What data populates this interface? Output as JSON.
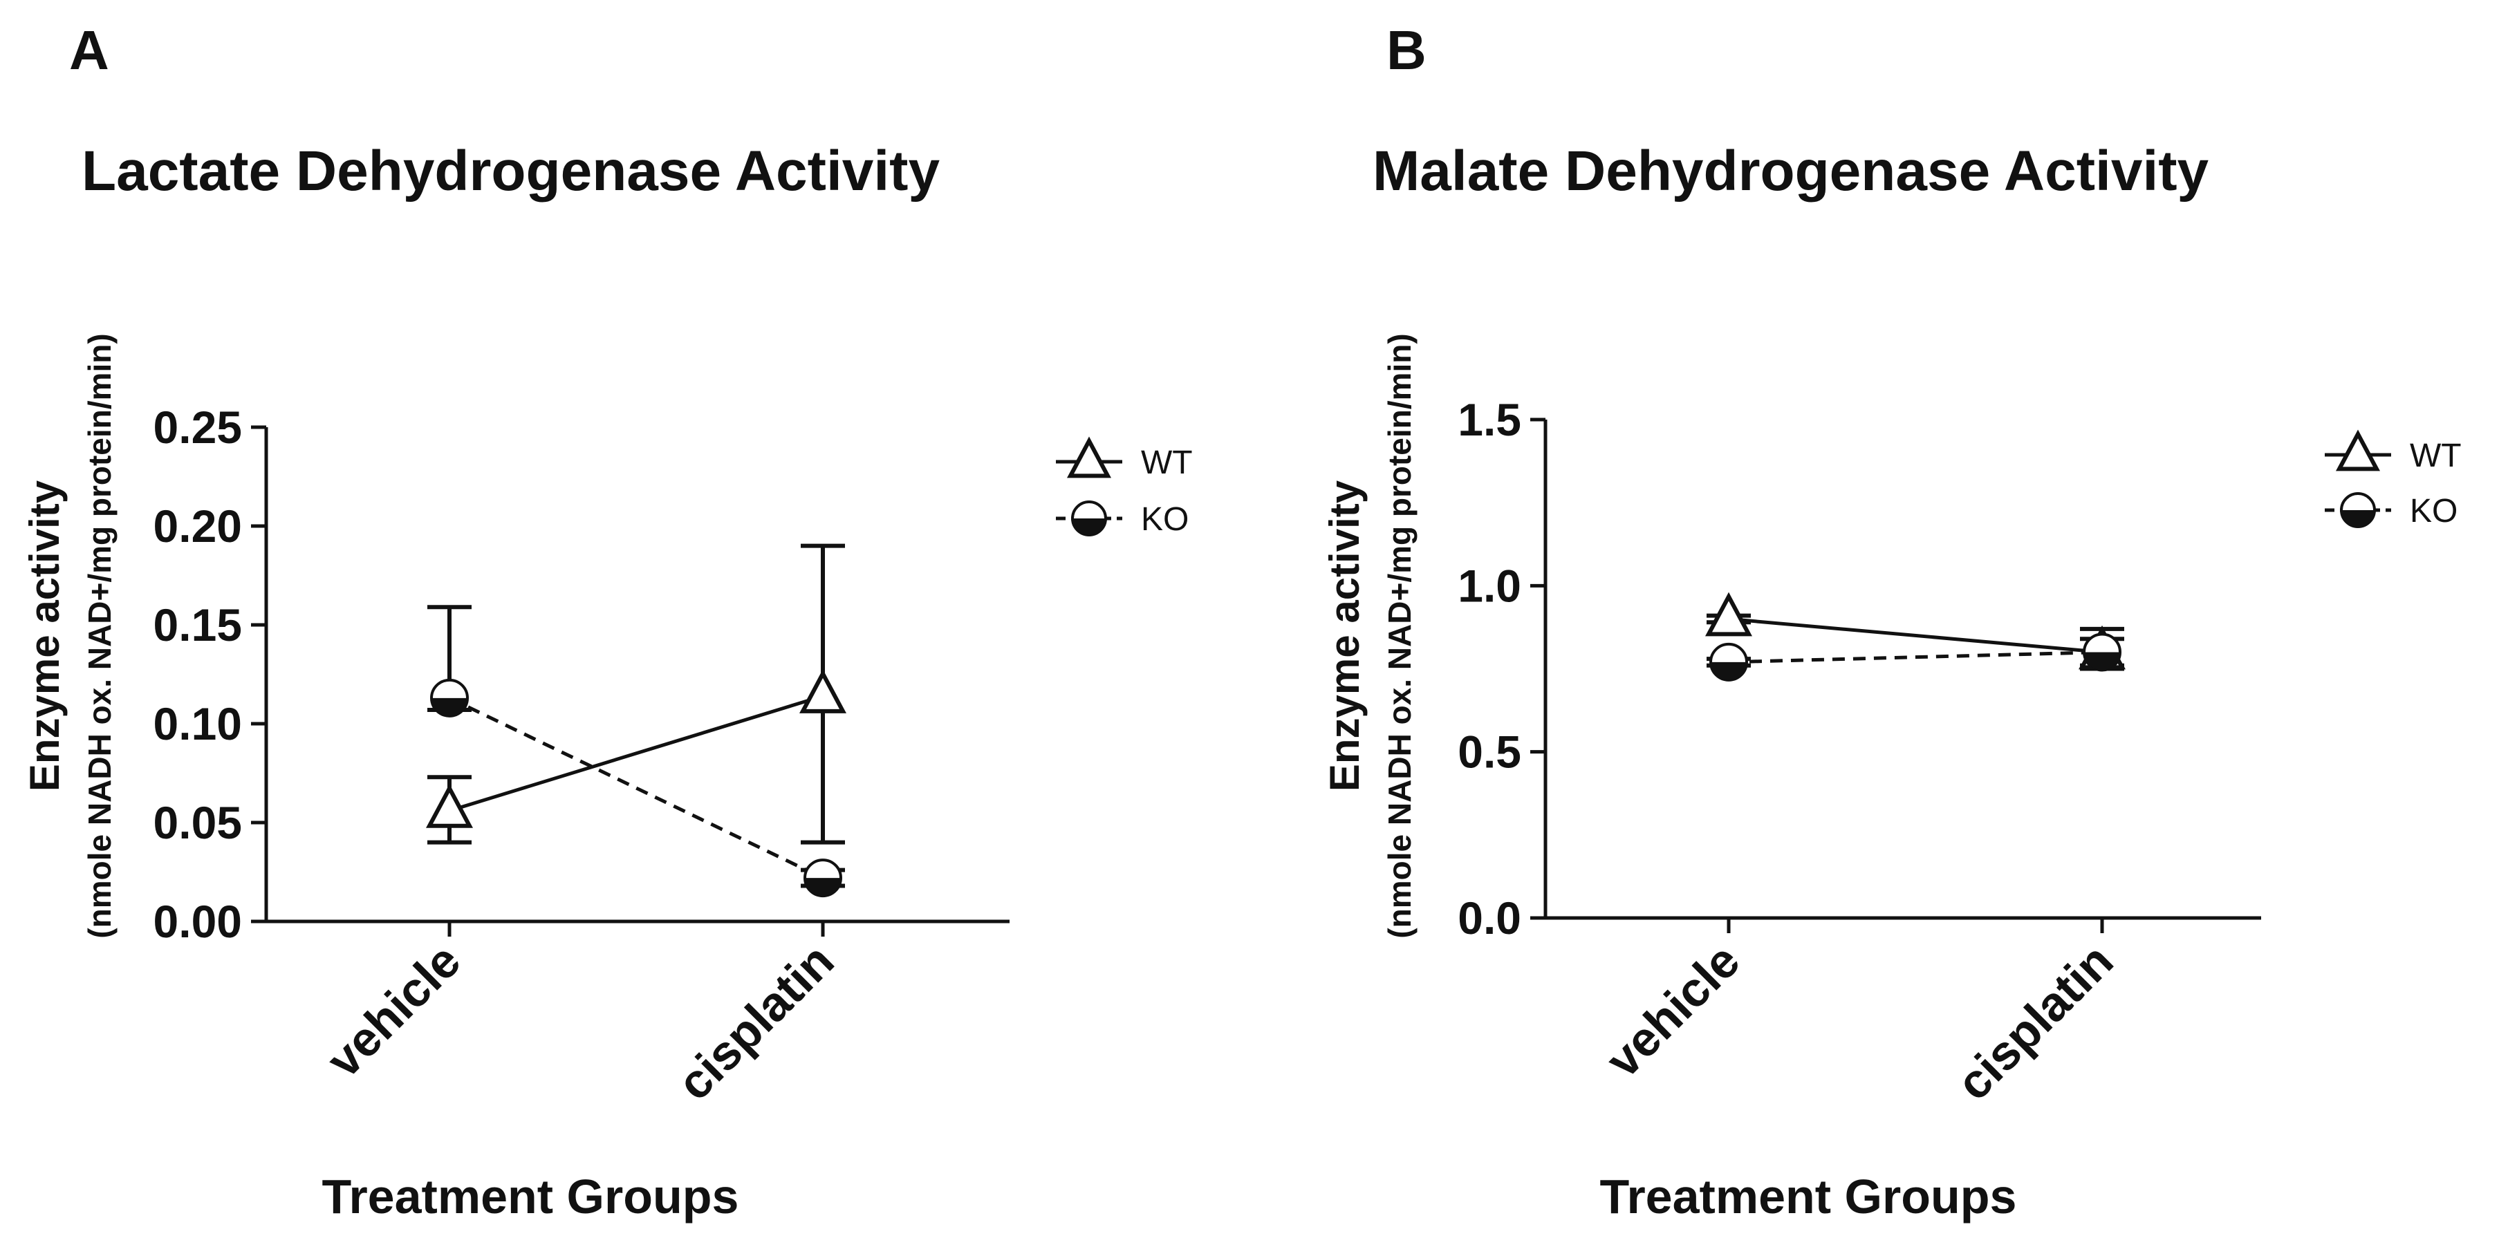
{
  "chart_data": [
    {
      "panel_label": "A",
      "type": "line",
      "title": "Lactate Dehydrogenase Activity",
      "ylabel": "Enzyme activity",
      "ylabel_units": "(nmole NADH ox. NAD+/mg protein/min)",
      "xlabel": "Treatment Groups",
      "categories": [
        "vehicle",
        "cisplatin"
      ],
      "ylim": [
        0,
        0.25
      ],
      "yticks": [
        "0.00",
        "0.05",
        "0.10",
        "0.15",
        "0.20",
        "0.25"
      ],
      "legend_position": "right",
      "series": [
        {
          "name": "WT",
          "values": [
            0.056,
            0.114
          ],
          "err_low": [
            0.04,
            0.04
          ],
          "err_high": [
            0.073,
            0.19
          ],
          "marker": "open-triangle",
          "line": "solid"
        },
        {
          "name": "KO",
          "values": [
            0.113,
            0.022
          ],
          "err_low": [
            0.107,
            0.018
          ],
          "err_high": [
            0.159,
            0.026
          ],
          "marker": "half-filled-circle",
          "line": "dashed"
        }
      ]
    },
    {
      "panel_label": "B",
      "type": "line",
      "title": "Malate Dehydrogenase Activity",
      "ylabel": "Enzyme activity",
      "ylabel_units": "(nmole NADH ox. NAD+/mg protein/min)",
      "xlabel": "Treatment Groups",
      "categories": [
        "vehicle",
        "cisplatin"
      ],
      "ylim": [
        0,
        1.5
      ],
      "yticks": [
        "0.0",
        "0.5",
        "1.0",
        "1.5"
      ],
      "legend_position": "right",
      "series": [
        {
          "name": "WT",
          "values": [
            0.9,
            0.8
          ],
          "err_low": [
            0.89,
            0.75
          ],
          "err_high": [
            0.91,
            0.87
          ],
          "marker": "open-triangle",
          "line": "solid"
        },
        {
          "name": "KO",
          "values": [
            0.77,
            0.8
          ],
          "err_low": [
            0.76,
            0.76
          ],
          "err_high": [
            0.78,
            0.84
          ],
          "marker": "half-filled-circle",
          "line": "dashed"
        }
      ]
    }
  ]
}
